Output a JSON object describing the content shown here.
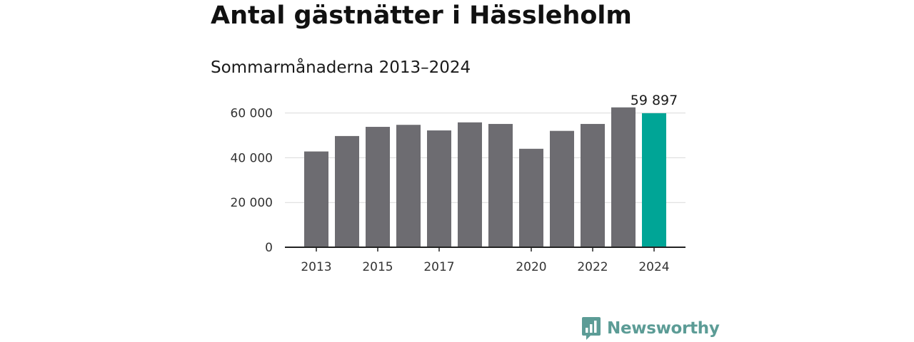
{
  "header": {
    "title": "Antal gästnätter i Hässleholm",
    "subtitle": "Sommarmånaderna 2013–2024"
  },
  "brand": {
    "name": "Newsworthy",
    "icon": "newsworthy-logo-icon"
  },
  "colors": {
    "bar": "#6d6c71",
    "highlight": "#00a596",
    "grid": "#d9d9d9",
    "axis": "#222222"
  },
  "chart_data": {
    "type": "bar",
    "title": "Antal gästnätter i Hässleholm",
    "subtitle": "Sommarmånaderna 2013–2024",
    "xlabel": "",
    "ylabel": "",
    "categories": [
      "2013",
      "2014",
      "2015",
      "2016",
      "2017",
      "2018",
      "2019",
      "2020",
      "2021",
      "2022",
      "2023",
      "2024"
    ],
    "values": [
      42800,
      49700,
      53800,
      54700,
      52200,
      55800,
      55100,
      44000,
      52000,
      55100,
      62500,
      59897
    ],
    "ylim": [
      0,
      64000
    ],
    "yticks": [
      0,
      20000,
      40000,
      60000
    ],
    "ytick_labels": [
      "0",
      "20 000",
      "40 000",
      "60 000"
    ],
    "xtick_labels": [
      "2013",
      "2015",
      "2017",
      "2020",
      "2022",
      "2024"
    ],
    "highlight_index": 11,
    "data_labels": [
      {
        "index": 11,
        "text": "59 897"
      }
    ],
    "grid": true,
    "legend": "none"
  }
}
